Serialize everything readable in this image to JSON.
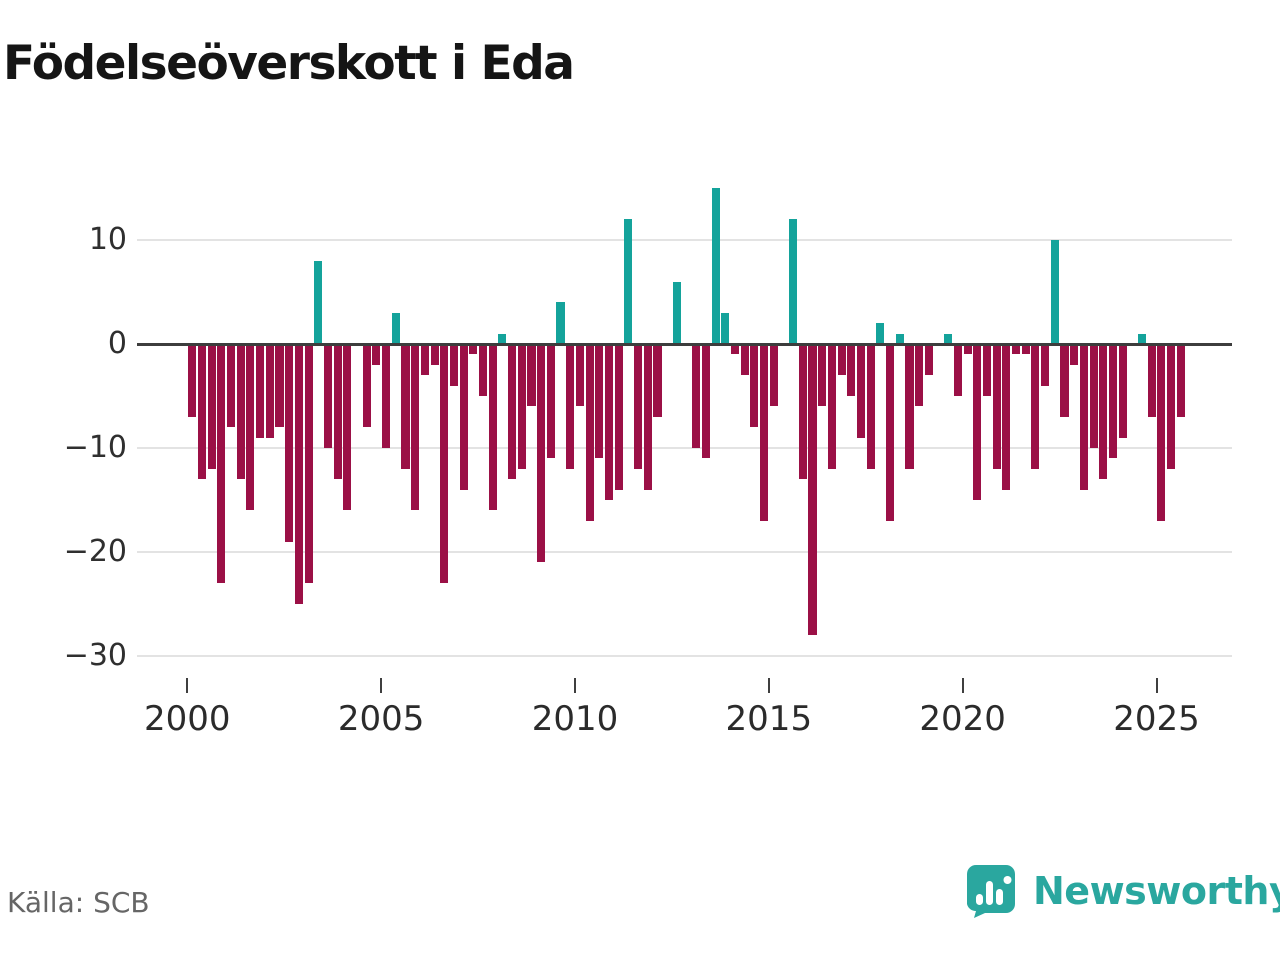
{
  "header": {
    "title": "Födelseöverskott i Eda"
  },
  "footer": {
    "source_label": "Källa: SCB"
  },
  "branding": {
    "wordmark": "Newsworthy",
    "icon": "bar-chart-badge-icon",
    "icon_color": "#2aa79f",
    "wordmark_color": "#2aa79f"
  },
  "chart_data": {
    "type": "bar",
    "title": "Födelseöverskott i Eda",
    "frequency": "quarterly",
    "start_year": 2000,
    "end_label": "2025 Q3",
    "grid": "horizontal",
    "zero_line": true,
    "legend": "none",
    "ylim": [
      -30,
      16
    ],
    "y_ticks": [
      10,
      0,
      -10,
      -20,
      -30
    ],
    "y_tick_labels": [
      "10",
      "0",
      "−10",
      "−20",
      "−30"
    ],
    "x_tick_years": [
      2000,
      2005,
      2010,
      2015,
      2020,
      2025
    ],
    "positive_color": "#14a39b",
    "negative_color": "#9b1046",
    "values_by_year": {
      "2000": [
        -7,
        -13,
        -12,
        -23
      ],
      "2001": [
        -8,
        -13,
        -16,
        -9
      ],
      "2002": [
        -9,
        -8,
        -19,
        -25
      ],
      "2003": [
        -23,
        8,
        -10,
        -13
      ],
      "2004": [
        -16,
        0,
        -8,
        -2
      ],
      "2005": [
        -10,
        3,
        -12,
        -16
      ],
      "2006": [
        -3,
        -2,
        -23,
        -4
      ],
      "2007": [
        -14,
        -1,
        -5,
        -16
      ],
      "2008": [
        1,
        -13,
        -12,
        -6
      ],
      "2009": [
        -21,
        -11,
        4,
        -12
      ],
      "2010": [
        -6,
        -17,
        -11,
        -15
      ],
      "2011": [
        -14,
        12,
        -12,
        -14
      ],
      "2012": [
        -7,
        0,
        6,
        0
      ],
      "2013": [
        -10,
        -11,
        15,
        3
      ],
      "2014": [
        -1,
        -3,
        -8,
        -17
      ],
      "2015": [
        -6,
        0,
        12,
        -13
      ],
      "2016": [
        -28,
        -6,
        -12,
        -3
      ],
      "2017": [
        -5,
        -9,
        -12,
        2
      ],
      "2018": [
        -17,
        1,
        -12,
        -6
      ],
      "2019": [
        -3,
        0,
        1,
        -5
      ],
      "2020": [
        -1,
        -15,
        -5,
        -12
      ],
      "2021": [
        -14,
        -1,
        -1,
        -12
      ],
      "2022": [
        -4,
        10,
        -7,
        -2
      ],
      "2023": [
        -14,
        -10,
        -13,
        -11
      ],
      "2024": [
        -9,
        0,
        1,
        -7
      ],
      "2025": [
        -17,
        -12,
        -7
      ]
    }
  }
}
